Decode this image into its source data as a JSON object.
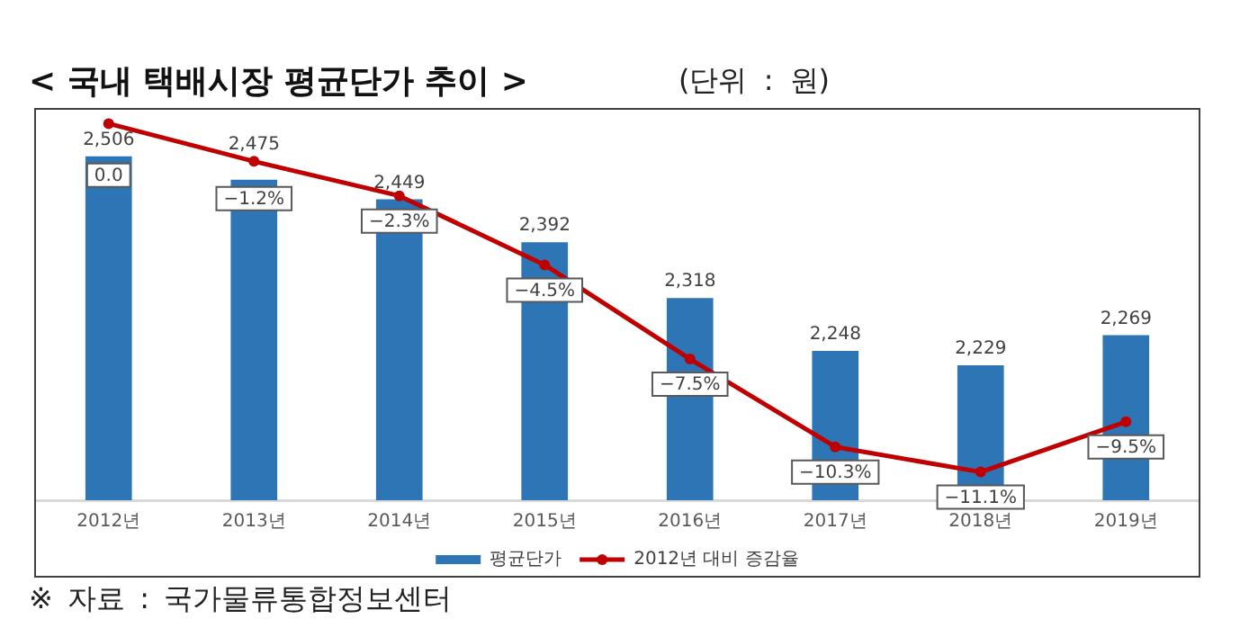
{
  "chart_data": {
    "type": "bar",
    "title": "< 국내 택배시장 평균단가 추이 >",
    "subtitle": "(단위 : 원)",
    "annotations": [
      "※ 자료 : 국가물류통합정보센터"
    ],
    "categories": [
      "2012년",
      "2013년",
      "2014년",
      "2015년",
      "2016년",
      "2017년",
      "2018년",
      "2019년"
    ],
    "series": [
      {
        "name": "평균단가",
        "color": "#2e75b6",
        "values": [
          2506,
          2475,
          2449,
          2392,
          2318,
          2248,
          2229,
          2269
        ],
        "value_labels": [
          "2,506",
          "2,475",
          "2,449",
          "2,392",
          "2,318",
          "2,248",
          "2,229",
          "2,269"
        ]
      },
      {
        "name": "2012년 대비 증감율",
        "type": "line",
        "axis": "y2",
        "color": "#c00000",
        "values": [
          0,
          -1.2,
          -2.3,
          -4.5,
          -7.5,
          -10.3,
          -11.1,
          -9.5
        ],
        "value_labels": [
          "0.0",
          "−1.2%",
          "−2.3%",
          "−4.5%",
          "−7.5%",
          "−10.3%",
          "−11.1%",
          "−9.5%"
        ]
      }
    ],
    "ylim": [
      2050,
      2570
    ],
    "y2lim": [
      -12,
      0.5
    ],
    "tick_labels": "x",
    "legend": "bottom",
    "marker": "circle",
    "line_style": "solid"
  }
}
